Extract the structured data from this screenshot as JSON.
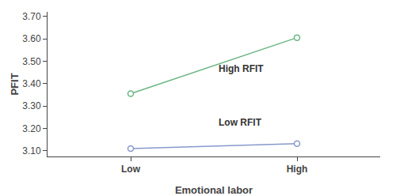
{
  "chart_data": {
    "type": "line",
    "x_label": "Emotional labor",
    "y_label": "PFIT",
    "categories": [
      "Low",
      "High"
    ],
    "series": [
      {
        "color": "#6ab584",
        "marker": "circle",
        "values": [
          3.355,
          3.605
        ]
      },
      {
        "color": "#8899cc",
        "marker": "circle",
        "values": [
          3.11,
          3.132
        ]
      }
    ],
    "annotations": [
      {
        "text": "High RFIT",
        "y": 3.435
      },
      {
        "text": "Low RFIT",
        "y": 3.195
      }
    ],
    "ylim": [
      3.075,
      3.72
    ],
    "yticks": [
      {
        "value": 3.1,
        "label": "3.10"
      },
      {
        "value": 3.2,
        "label": "3.20"
      },
      {
        "value": 3.3,
        "label": "3.30"
      },
      {
        "value": 3.4,
        "label": "3.40"
      },
      {
        "value": 3.5,
        "label": "3.50"
      },
      {
        "value": 3.6,
        "label": "3.60"
      },
      {
        "value": 3.7,
        "label": "3.70"
      }
    ],
    "grid": false
  }
}
